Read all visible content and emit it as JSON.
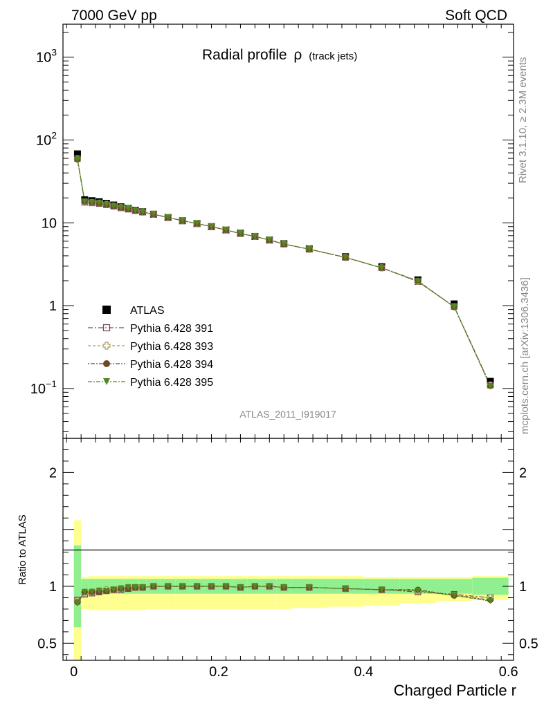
{
  "header": {
    "left": "7000 GeV pp",
    "right": "Soft QCD"
  },
  "side": {
    "rivet": "Rivet 3.1.10, ≥ 2.3M events",
    "mcplots": "mcplots.cern.ch [arXiv:1306.3436]"
  },
  "chart_data": {
    "type": "scatter",
    "title": "Radial profile",
    "title_symbol": "ρ",
    "title_suffix": "(track jets)",
    "analysis_id": "ATLAS_2011_I919017",
    "xlabel": "Charged Particle r",
    "ylabel_ratio": "Ratio to ATLAS",
    "xlim": [
      -0.015,
      0.607
    ],
    "ylim_main": [
      0.025,
      2500
    ],
    "ylim_ratio": [
      0.35,
      2.3
    ],
    "yscale_main": "log",
    "legend_position": "lower-left",
    "x_ticks": [
      "0",
      "0.2",
      "0.4",
      "0.6"
    ],
    "y_ticks_main": [
      "10⁻¹",
      "1",
      "10",
      "10²",
      "10³"
    ],
    "y_ticks_ratio": [
      "0.5",
      "1",
      "2"
    ],
    "x": [
      0.005,
      0.015,
      0.025,
      0.035,
      0.045,
      0.055,
      0.065,
      0.075,
      0.085,
      0.095,
      0.11,
      0.13,
      0.15,
      0.17,
      0.19,
      0.21,
      0.23,
      0.25,
      0.27,
      0.29,
      0.325,
      0.375,
      0.425,
      0.475,
      0.525,
      0.575
    ],
    "x_edges": [
      0,
      0.01,
      0.02,
      0.03,
      0.04,
      0.05,
      0.06,
      0.07,
      0.08,
      0.09,
      0.1,
      0.12,
      0.14,
      0.16,
      0.18,
      0.2,
      0.22,
      0.24,
      0.26,
      0.28,
      0.3,
      0.35,
      0.4,
      0.45,
      0.5,
      0.55,
      0.6
    ],
    "data": {
      "name": "ATLAS",
      "values": [
        68,
        19,
        18.5,
        18,
        17.2,
        16.4,
        15.6,
        14.9,
        14.2,
        13.6,
        12.7,
        11.6,
        10.6,
        9.8,
        9.0,
        8.2,
        7.5,
        6.85,
        6.2,
        5.6,
        4.85,
        3.9,
        2.95,
        2.05,
        1.05,
        0.122
      ],
      "band_inner": [
        0.36,
        0.065,
        0.065,
        0.065,
        0.065,
        0.065,
        0.065,
        0.065,
        0.065,
        0.065,
        0.065,
        0.065,
        0.065,
        0.065,
        0.065,
        0.065,
        0.065,
        0.065,
        0.065,
        0.065,
        0.065,
        0.065,
        0.065,
        0.065,
        0.065,
        0.075
      ],
      "band_outer_hi": [
        0.58,
        0.08,
        0.09,
        0.09,
        0.09,
        0.09,
        0.09,
        0.09,
        0.09,
        0.09,
        0.09,
        0.09,
        0.09,
        0.09,
        0.09,
        0.09,
        0.09,
        0.09,
        0.09,
        0.09,
        0.09,
        0.09,
        0.08,
        0.08,
        0.08,
        0.09
      ],
      "band_outer_lo": [
        0.68,
        0.2,
        0.21,
        0.21,
        0.21,
        0.21,
        0.21,
        0.21,
        0.21,
        0.21,
        0.2,
        0.2,
        0.2,
        0.2,
        0.2,
        0.2,
        0.2,
        0.2,
        0.2,
        0.2,
        0.19,
        0.18,
        0.17,
        0.15,
        0.13,
        0.12
      ],
      "color": "#000000"
    },
    "series": [
      {
        "name": "Pythia 6.428 391",
        "marker": "open-square",
        "color": "#7a4a5e",
        "ratio": [
          0.88,
          0.93,
          0.94,
          0.95,
          0.96,
          0.97,
          0.97,
          0.98,
          0.99,
          0.99,
          1.0,
          1.0,
          1.0,
          1.0,
          1.0,
          1.0,
          0.99,
          1.0,
          1.0,
          0.99,
          0.99,
          0.98,
          0.97,
          0.95,
          0.93,
          0.9
        ]
      },
      {
        "name": "Pythia 6.428 393",
        "marker": "open-cross",
        "color": "#a89a5a",
        "ratio": [
          0.87,
          0.94,
          0.95,
          0.96,
          0.97,
          0.97,
          0.98,
          0.99,
          0.99,
          0.99,
          1.0,
          1.0,
          1.0,
          1.0,
          1.0,
          1.0,
          0.99,
          1.0,
          1.0,
          0.99,
          0.99,
          0.98,
          0.97,
          0.96,
          0.92,
          0.9
        ]
      },
      {
        "name": "Pythia 6.428 394",
        "marker": "filled-circle",
        "color": "#6b4a2b",
        "ratio": [
          0.86,
          0.95,
          0.95,
          0.95,
          0.96,
          0.97,
          0.98,
          0.98,
          0.99,
          0.99,
          1.0,
          1.0,
          1.0,
          1.0,
          1.0,
          1.0,
          0.99,
          1.0,
          1.0,
          0.99,
          0.99,
          0.98,
          0.97,
          0.97,
          0.92,
          0.88
        ]
      },
      {
        "name": "Pythia 6.428 395",
        "marker": "filled-triangle-down",
        "color": "#4f8a1e",
        "ratio": [
          0.85,
          0.95,
          0.95,
          0.96,
          0.96,
          0.97,
          0.98,
          0.99,
          0.99,
          0.99,
          1.0,
          1.0,
          1.0,
          1.0,
          1.0,
          1.0,
          0.99,
          1.0,
          1.0,
          0.99,
          0.99,
          0.98,
          0.97,
          0.96,
          0.92,
          0.87
        ]
      }
    ],
    "colors": {
      "band_inner": "#90f090",
      "band_outer": "#ffff90"
    }
  }
}
